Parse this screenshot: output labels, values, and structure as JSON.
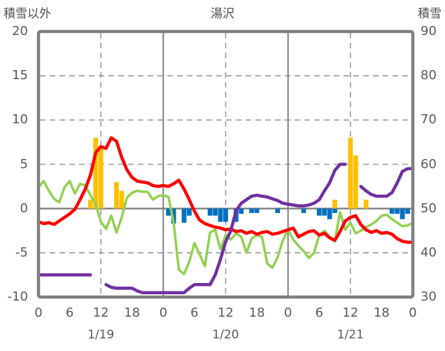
{
  "header": {
    "left_axis_title": "積雪以外",
    "station_name": "湯沢",
    "right_axis_title": "積雪"
  },
  "colors": {
    "red_line": "#FF0000",
    "green_line": "#92D050",
    "purple_line": "#7030A0",
    "orange_bar": "#FFC000",
    "blue_bar": "#0070C0",
    "grid": "#808080",
    "grid_dash": "#999999",
    "text": "#595959"
  },
  "chart_data": {
    "type": "combo-line-bar",
    "title": "湯沢",
    "x_hours_range": [
      0,
      72
    ],
    "x_hour_tick_step": 6,
    "x_hour_tick_labels": [
      "0",
      "6",
      "12",
      "18",
      "0",
      "6",
      "12",
      "18",
      "0",
      "6",
      "12",
      "18",
      "0"
    ],
    "day_labels": [
      "1/19",
      "1/20",
      "1/21"
    ],
    "day_label_center_hours": [
      12,
      36,
      60
    ],
    "left_axis": {
      "title": "積雪以外",
      "min": -10,
      "max": 20,
      "ticks": [
        20,
        15,
        10,
        5,
        0,
        -5,
        -10
      ]
    },
    "right_axis": {
      "title": "積雪",
      "min": 30,
      "max": 90,
      "ticks": [
        90,
        80,
        70,
        60,
        50,
        40,
        30
      ]
    },
    "grid": {
      "h_dashed_left_values": [
        15,
        10,
        5,
        -5
      ],
      "h_solid_left_values": [
        0
      ],
      "v_solid_hours": [
        24,
        48
      ],
      "v_dashed_hours": [
        12,
        36,
        60
      ]
    },
    "series": [
      {
        "name": "red-line",
        "axis": "left",
        "type": "line",
        "values": [
          -1.5,
          -1.7,
          -1.6,
          -1.8,
          -1.4,
          -1.0,
          -0.6,
          -0.1,
          1.0,
          2.2,
          3.8,
          6.3,
          7.0,
          6.8,
          8.0,
          7.6,
          5.8,
          4.4,
          3.5,
          3.1,
          3.0,
          2.9,
          2.6,
          2.5,
          2.6,
          2.5,
          2.8,
          3.2,
          2.2,
          1.0,
          -0.3,
          -1.3,
          -1.7,
          -1.9,
          -2.1,
          -2.2,
          -2.4,
          -2.3,
          -2.6,
          -2.5,
          -2.8,
          -2.6,
          -2.9,
          -2.7,
          -2.6,
          -2.9,
          -2.8,
          -2.6,
          -2.4,
          -2.2,
          -3.2,
          -2.9,
          -2.6,
          -2.5,
          -3.0,
          -2.8,
          -3.3,
          -3.6,
          -2.6,
          -1.4,
          -1.0,
          -0.8,
          -1.8,
          -2.4,
          -2.7,
          -2.5,
          -2.8,
          -2.7,
          -2.9,
          -3.4,
          -3.7,
          -3.8,
          -3.8
        ]
      },
      {
        "name": "green-line",
        "axis": "left",
        "type": "line",
        "values": [
          2.4,
          3.1,
          2.0,
          1.1,
          0.7,
          2.4,
          3.1,
          1.7,
          2.8,
          2.6,
          1.5,
          0.5,
          -1.5,
          -2.3,
          -0.8,
          -2.7,
          -1.0,
          1.2,
          1.8,
          2.0,
          1.9,
          1.9,
          1.0,
          1.4,
          1.5,
          1.3,
          -1.6,
          -6.9,
          -7.4,
          -6.0,
          -3.9,
          -5.2,
          -6.5,
          -2.7,
          -2.4,
          -4.6,
          -3.0,
          -3.5,
          -2.8,
          -3.2,
          -5.0,
          -3.4,
          -3.0,
          -3.2,
          -6.2,
          -6.7,
          -5.5,
          -3.6,
          -2.4,
          -3.5,
          -4.2,
          -4.8,
          -5.6,
          -5.0,
          -3.0,
          -2.5,
          -3.2,
          -3.7,
          -0.4,
          -2.4,
          -1.6,
          -2.8,
          -2.5,
          -2.1,
          -1.8,
          -1.4,
          -0.8,
          -0.7,
          -1.2,
          -1.6,
          -2.0,
          -1.9,
          -1.6
        ]
      },
      {
        "name": "purple-line",
        "axis": "right",
        "type": "line",
        "values": [
          35,
          35,
          35,
          35,
          35,
          35,
          35,
          35,
          35,
          35,
          35,
          null,
          null,
          32.8,
          32.2,
          32,
          32,
          32,
          32,
          31.4,
          31,
          31,
          31,
          31,
          31,
          31,
          31,
          31,
          31,
          32,
          32.8,
          32.8,
          32.8,
          32.8,
          35,
          38.5,
          42.5,
          45,
          49.5,
          51.2,
          52,
          52.8,
          53,
          52.8,
          52.6,
          52.2,
          51.8,
          51.2,
          51,
          50.8,
          50.6,
          50.6,
          50.8,
          51.2,
          52,
          54,
          55.8,
          58.6,
          60,
          60,
          null,
          null,
          55,
          54,
          53.2,
          52.8,
          52.8,
          52.8,
          53.6,
          55.8,
          58.4,
          59,
          59
        ]
      },
      {
        "name": "orange-bars",
        "axis": "left",
        "type": "bar",
        "points": [
          {
            "hour": 10,
            "value": 1
          },
          {
            "hour": 11,
            "value": 8
          },
          {
            "hour": 12,
            "value": 7
          },
          {
            "hour": 15,
            "value": 3
          },
          {
            "hour": 16,
            "value": 2
          },
          {
            "hour": 57,
            "value": 1
          },
          {
            "hour": 60,
            "value": 8
          },
          {
            "hour": 61,
            "value": 6
          },
          {
            "hour": 63,
            "value": 1
          }
        ]
      },
      {
        "name": "blue-bars",
        "axis": "left",
        "type": "bar",
        "points": [
          {
            "hour": 25,
            "value": -0.8
          },
          {
            "hour": 26,
            "value": -1.7
          },
          {
            "hour": 28,
            "value": -1.6
          },
          {
            "hour": 29,
            "value": -0.8
          },
          {
            "hour": 33,
            "value": -0.8
          },
          {
            "hour": 34,
            "value": -0.8
          },
          {
            "hour": 35,
            "value": -1.5
          },
          {
            "hour": 36,
            "value": -1.5
          },
          {
            "hour": 38,
            "value": -1.5
          },
          {
            "hour": 39,
            "value": -0.6
          },
          {
            "hour": 41,
            "value": -0.5
          },
          {
            "hour": 42,
            "value": -0.5
          },
          {
            "hour": 46,
            "value": -0.5
          },
          {
            "hour": 51,
            "value": -0.5
          },
          {
            "hour": 54,
            "value": -0.8
          },
          {
            "hour": 55,
            "value": -0.8
          },
          {
            "hour": 56,
            "value": -1.2
          },
          {
            "hour": 57,
            "value": -0.5
          },
          {
            "hour": 68,
            "value": -0.6
          },
          {
            "hour": 69,
            "value": -0.6
          },
          {
            "hour": 70,
            "value": -1.2
          },
          {
            "hour": 71,
            "value": -0.6
          }
        ]
      }
    ]
  }
}
